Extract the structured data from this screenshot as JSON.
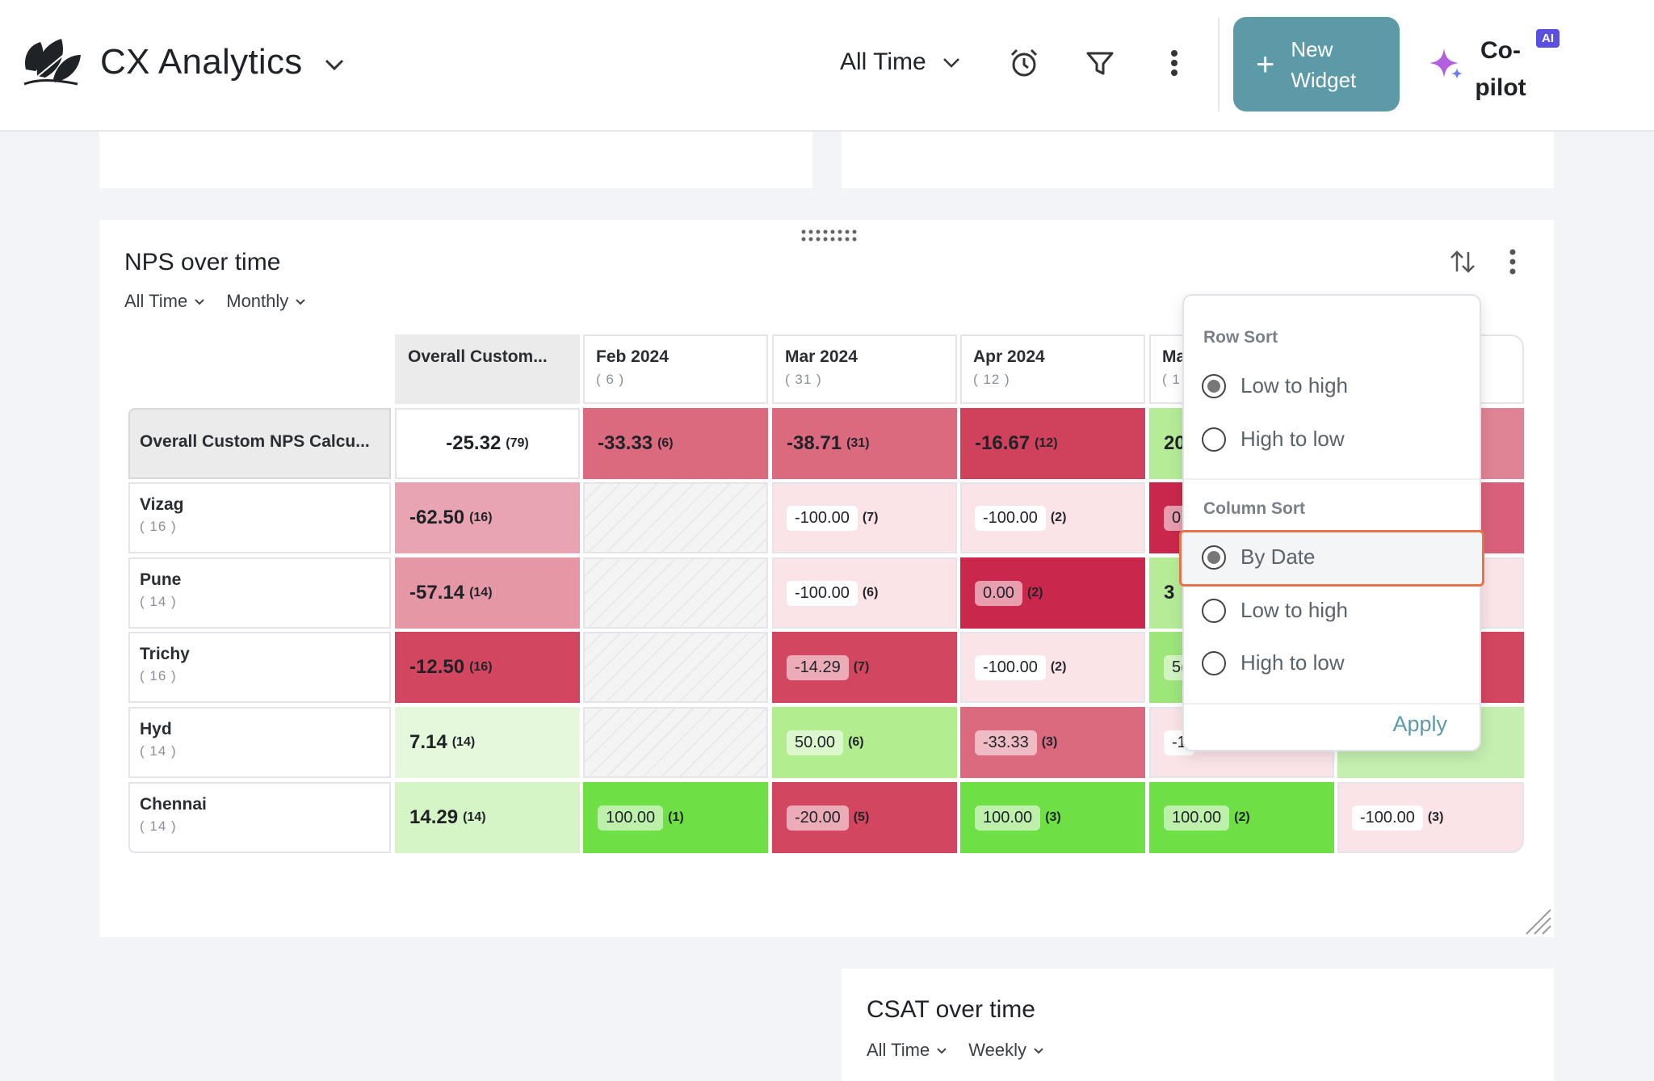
{
  "header": {
    "app_title": "CX Analytics",
    "time_filter": "All Time",
    "new_widget_plus": "+",
    "new_widget_label": "New Widget",
    "copilot_label": "Co-pilot",
    "copilot_badge": "AI",
    "accent_color": "#5b9aa6"
  },
  "nps_widget": {
    "title": "NPS over time",
    "filters": {
      "range": "All Time",
      "granularity": "Monthly"
    },
    "columns": [
      {
        "label": "Overall Custom...",
        "count": ""
      },
      {
        "label": "Feb 2024",
        "count": "( 6 )"
      },
      {
        "label": "Mar 2024",
        "count": "( 31 )"
      },
      {
        "label": "Apr 2024",
        "count": "( 12 )"
      },
      {
        "label": "Ma",
        "count": "( 1"
      },
      {
        "label": "",
        "count": ""
      }
    ],
    "rows": [
      {
        "label": "Overall Custom NPS Calcu...",
        "count": "",
        "cells": [
          {
            "v": "-25.32",
            "c": "(79)"
          },
          {
            "v": "-33.33",
            "c": "(6)"
          },
          {
            "v": "-38.71",
            "c": "(31)"
          },
          {
            "v": "-16.67",
            "c": "(12)"
          },
          {
            "v": "20",
            "c": ""
          },
          {
            "v": "",
            "c": ""
          }
        ]
      },
      {
        "label": "Vizag",
        "count": "( 16 )",
        "cells": [
          {
            "v": "-62.50",
            "c": "(16)"
          },
          {
            "v": "",
            "c": ""
          },
          {
            "v": "-100.00",
            "c": "(7)"
          },
          {
            "v": "-100.00",
            "c": "(2)"
          },
          {
            "v": "0.",
            "c": ""
          },
          {
            "v": "",
            "c": ""
          }
        ]
      },
      {
        "label": "Pune",
        "count": "( 14 )",
        "cells": [
          {
            "v": "-57.14",
            "c": "(14)"
          },
          {
            "v": "",
            "c": ""
          },
          {
            "v": "-100.00",
            "c": "(6)"
          },
          {
            "v": "0.00",
            "c": "(2)"
          },
          {
            "v": "3",
            "c": ""
          },
          {
            "v": "",
            "c": ""
          }
        ]
      },
      {
        "label": "Trichy",
        "count": "( 16 )",
        "cells": [
          {
            "v": "-12.50",
            "c": "(16)"
          },
          {
            "v": "",
            "c": ""
          },
          {
            "v": "-14.29",
            "c": "(7)"
          },
          {
            "v": "-100.00",
            "c": "(2)"
          },
          {
            "v": "5(",
            "c": ""
          },
          {
            "v": "",
            "c": ""
          }
        ]
      },
      {
        "label": "Hyd",
        "count": "( 14 )",
        "cells": [
          {
            "v": "7.14",
            "c": "(14)"
          },
          {
            "v": "",
            "c": ""
          },
          {
            "v": "50.00",
            "c": "(6)"
          },
          {
            "v": "-33.33",
            "c": "(3)"
          },
          {
            "v": "-1",
            "c": ""
          },
          {
            "v": "",
            "c": ""
          }
        ]
      },
      {
        "label": "Chennai",
        "count": "( 14 )",
        "cells": [
          {
            "v": "14.29",
            "c": "(14)"
          },
          {
            "v": "100.00",
            "c": "(1)"
          },
          {
            "v": "-20.00",
            "c": "(5)"
          },
          {
            "v": "100.00",
            "c": "(3)"
          },
          {
            "v": "100.00",
            "c": "(2)"
          },
          {
            "v": "-100.00",
            "c": "(3)"
          }
        ]
      }
    ]
  },
  "sort_menu": {
    "row_sort_title": "Row Sort",
    "row_options": [
      "Low to high",
      "High to low"
    ],
    "row_selected": "Low to high",
    "column_sort_title": "Column Sort",
    "column_options": [
      "By Date",
      "Low to high",
      "High to low"
    ],
    "column_selected": "By Date",
    "apply_label": "Apply"
  },
  "csat_widget": {
    "title": "CSAT over time",
    "filters": {
      "range": "All Time",
      "granularity": "Weekly"
    }
  }
}
